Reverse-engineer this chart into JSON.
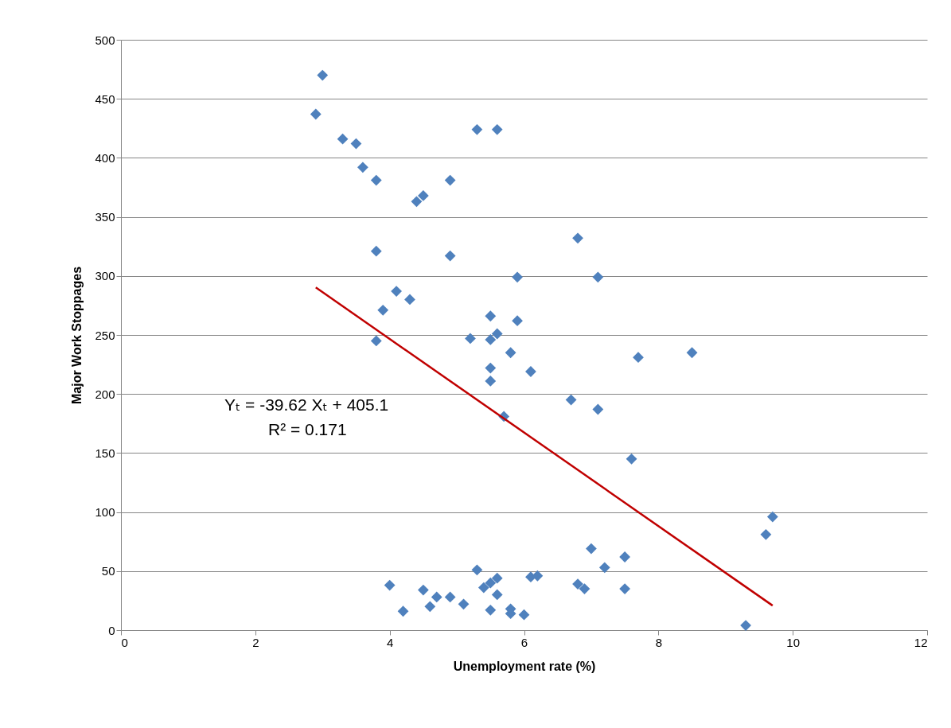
{
  "chart_data": {
    "type": "scatter",
    "xlabel": "Unemployment rate (%)",
    "ylabel": "Major Work Stoppages",
    "xlim": [
      0,
      12
    ],
    "xticks": [
      0,
      2,
      4,
      6,
      8,
      10,
      12
    ],
    "ylim": [
      0,
      500
    ],
    "yticks": [
      0,
      50,
      100,
      150,
      200,
      250,
      300,
      350,
      400,
      450,
      500
    ],
    "grid": "y",
    "marker": "diamond",
    "annotations": [
      "Yₜ = -39.62 Xₜ + 405.1",
      "R² = 0.171"
    ],
    "series": [
      {
        "color": "#4f81bd",
        "x": [
          3.0,
          2.9,
          3.3,
          3.5,
          3.6,
          3.8,
          3.8,
          4.4,
          4.5,
          4.9,
          4.9,
          5.3,
          5.6,
          4.1,
          3.9,
          4.3,
          3.8,
          5.2,
          5.5,
          5.9,
          5.6,
          5.5,
          5.8,
          5.5,
          5.5,
          6.1,
          5.7,
          5.9,
          6.8,
          7.1,
          7.7,
          8.5,
          6.7,
          7.1,
          7.6,
          4.0,
          4.2,
          4.5,
          4.6,
          4.7,
          4.9,
          5.1,
          5.3,
          5.4,
          5.5,
          5.6,
          5.6,
          5.5,
          5.8,
          5.8,
          6.0,
          6.1,
          6.2,
          7.0,
          7.2,
          7.5,
          6.8,
          6.9,
          7.5,
          9.6,
          9.7,
          9.3
        ],
        "values": [
          470,
          437,
          416,
          412,
          392,
          381,
          321,
          363,
          368,
          381,
          317,
          424,
          424,
          287,
          271,
          280,
          245,
          247,
          266,
          262,
          251,
          246,
          235,
          222,
          211,
          219,
          181,
          299,
          332,
          299,
          231,
          235,
          195,
          187,
          145,
          38,
          16,
          34,
          20,
          28,
          28,
          22,
          51,
          36,
          40,
          44,
          30,
          17,
          18,
          14,
          13,
          45,
          46,
          69,
          53,
          62,
          39,
          35,
          35,
          81,
          96,
          4
        ]
      },
      {
        "type": "line",
        "color": "#c00000",
        "marker": "none",
        "x": [
          2.9,
          9.7
        ],
        "values": [
          290.2,
          20.8
        ]
      }
    ]
  }
}
